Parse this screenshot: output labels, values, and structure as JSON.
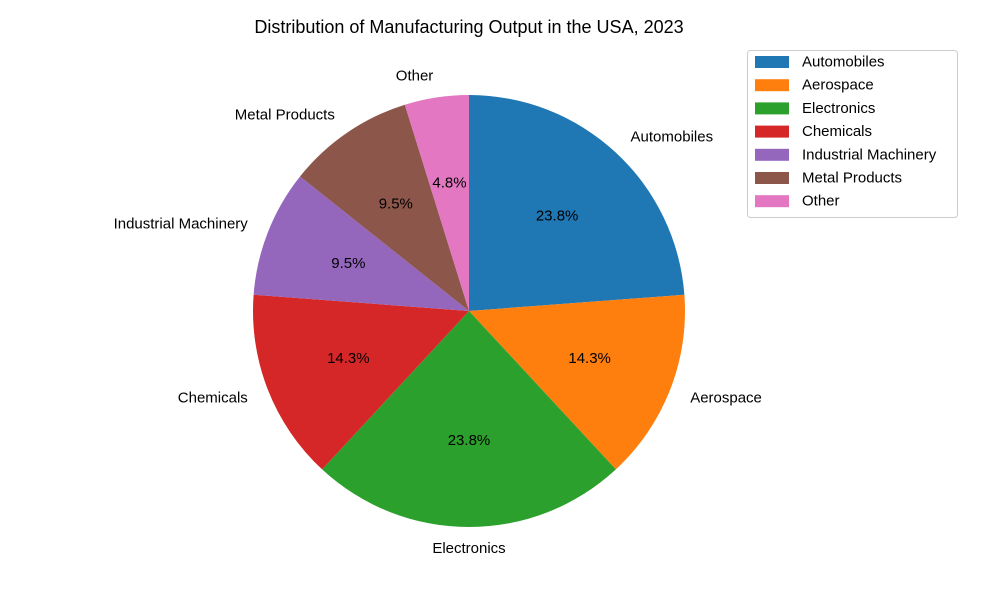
{
  "chart_data": {
    "type": "pie",
    "title": "Distribution of Manufacturing Output in the USA, 2023",
    "categories": [
      "Automobiles",
      "Aerospace",
      "Electronics",
      "Chemicals",
      "Industrial Machinery",
      "Metal Products",
      "Other"
    ],
    "values": [
      23.8,
      14.3,
      23.8,
      14.3,
      9.5,
      9.5,
      4.8
    ],
    "percent_labels": [
      "23.8%",
      "14.3%",
      "23.8%",
      "14.3%",
      "9.5%",
      "9.5%",
      "4.8%"
    ],
    "colors": [
      "#1f77b4",
      "#ff7f0e",
      "#2ca02c",
      "#d62728",
      "#9467bd",
      "#8c564b",
      "#e377c2"
    ],
    "start_angle": 90,
    "direction": "clockwise",
    "legend": {
      "position": "upper-right",
      "entries": [
        "Automobiles",
        "Aerospace",
        "Electronics",
        "Chemicals",
        "Industrial Machinery",
        "Metal Products",
        "Other"
      ]
    }
  }
}
